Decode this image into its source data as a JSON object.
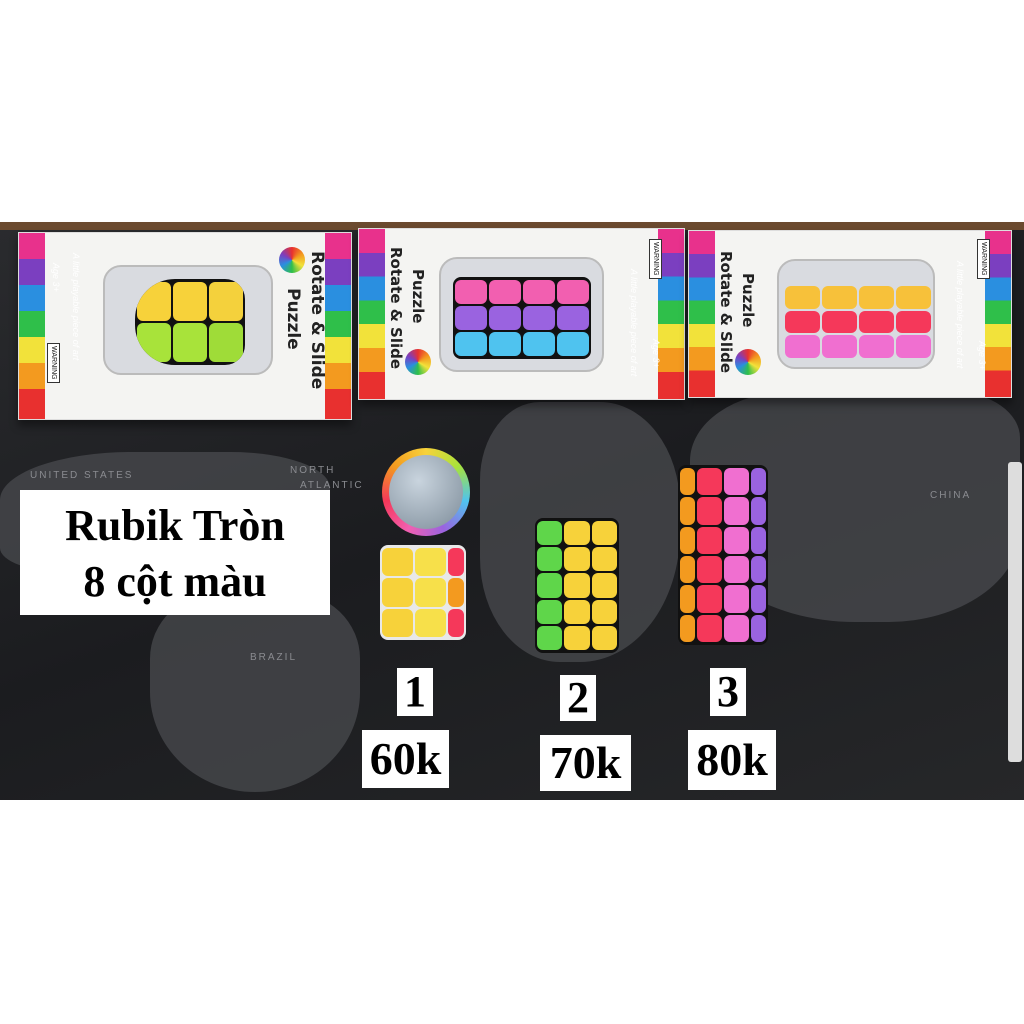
{
  "title_box": {
    "line1": "Rubik Tròn",
    "line2": "8 cột màu"
  },
  "products": [
    {
      "number": "1",
      "price": "60k"
    },
    {
      "number": "2",
      "price": "70k"
    },
    {
      "number": "3",
      "price": "80k"
    }
  ],
  "package": {
    "name_line1": "Rotate & Slide",
    "name_line2": "Puzzle",
    "tagline": "A little playable piece of art",
    "age": "Age 3+",
    "warning": "WARNING"
  },
  "map_labels": [
    "UNITED STATES",
    "NORTH",
    "ATLANTIC",
    "BRAZIL",
    "CHINA"
  ],
  "colors": {
    "background": "#ffffff",
    "mat": "#1f2023",
    "label_bg": "#ffffff",
    "label_text": "#000000"
  }
}
